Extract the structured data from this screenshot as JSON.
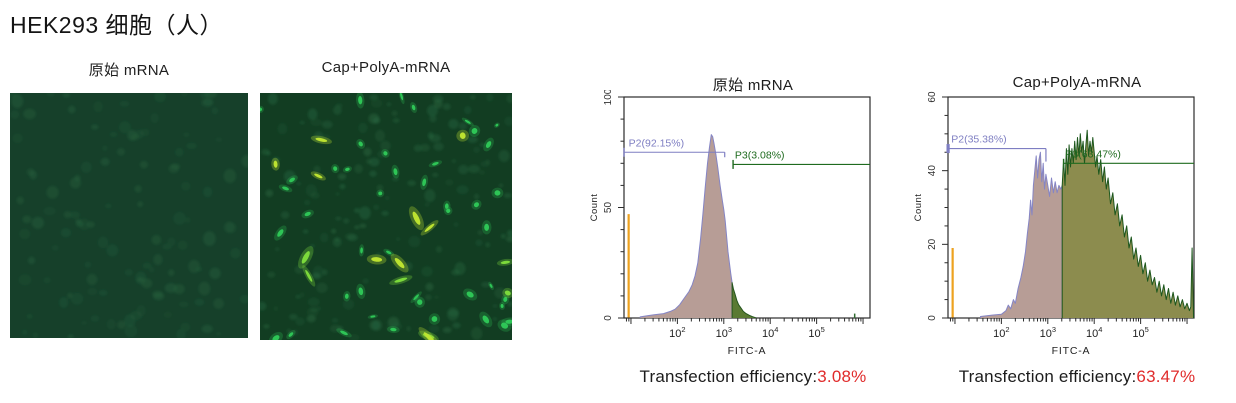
{
  "page": {
    "title": "HEK293 细胞（人）",
    "background": "#ffffff"
  },
  "colors": {
    "negative_outline": "#8585c5",
    "negative_fill": "#b79d96",
    "positive_outline": "#1f5c1f",
    "gate_p2_text": "#7e7ec2",
    "gate_p3_text": "#1f6b1f",
    "marker_orange": "#eda21f",
    "efficiency_value_red": "#e02b2b",
    "axis": "#2b2b2b"
  },
  "microscopy": {
    "panels": [
      {
        "label": "原始 mRNA",
        "background": "#16402a",
        "seed": 7,
        "faint_cells": {
          "count": 120,
          "color": "#2a6b43",
          "min_r": 2.5,
          "max_r": 6.5,
          "opacity": 0.22
        },
        "bright_cells": {
          "count": 0,
          "color": "#2fca58"
        },
        "yellow_cells": {
          "count": 0,
          "color": "#bfe431",
          "color2": "#7ddb3c"
        }
      },
      {
        "label": "Cap+PolyA-mRNA",
        "background": "#123d22",
        "seed": 23,
        "faint_cells": {
          "count": 160,
          "color": "#2a6b43",
          "min_r": 2,
          "max_r": 6,
          "opacity": 0.3
        },
        "bright_cells": {
          "count": 44,
          "color": "#2fca58"
        },
        "yellow_cells": {
          "count": 15,
          "color": "#bfe431",
          "color2": "#7ddb3c"
        }
      }
    ]
  },
  "chart_data": [
    {
      "type": "area",
      "title": "原始 mRNA",
      "xlabel": "FITC-A",
      "ylabel": "Count",
      "x_scale": "log",
      "x_log_range": [
        0.85,
        6.15
      ],
      "x_major_decades": [
        1,
        2,
        3,
        4,
        5,
        6
      ],
      "x_labeled_decades": [
        2,
        3,
        4,
        5
      ],
      "ylim": [
        0,
        100
      ],
      "y_ticks": [
        0,
        50,
        100
      ],
      "y_minor_step": 10,
      "grid": false,
      "legend": "none",
      "marker_line": {
        "x": 0.95,
        "top": 47,
        "color": "#eda21f"
      },
      "series": [
        {
          "name": "P2 negative (untransfected)",
          "stroke": "#8585c5",
          "fill": "#b79d96",
          "points": [
            [
              1.2,
              0.5
            ],
            [
              1.35,
              1
            ],
            [
              1.5,
              1.5
            ],
            [
              1.7,
              2
            ],
            [
              1.85,
              3
            ],
            [
              1.95,
              4
            ],
            [
              2.05,
              6
            ],
            [
              2.15,
              9
            ],
            [
              2.25,
              12
            ],
            [
              2.32,
              15
            ],
            [
              2.38,
              19
            ],
            [
              2.44,
              25
            ],
            [
              2.5,
              36
            ],
            [
              2.55,
              47
            ],
            [
              2.6,
              59
            ],
            [
              2.65,
              70
            ],
            [
              2.69,
              77
            ],
            [
              2.73,
              83
            ],
            [
              2.76,
              82
            ],
            [
              2.79,
              79
            ],
            [
              2.83,
              74
            ],
            [
              2.87,
              68
            ],
            [
              2.92,
              60
            ],
            [
              2.97,
              53
            ],
            [
              3.0,
              49
            ],
            [
              3.03,
              44
            ],
            [
              3.06,
              37
            ],
            [
              3.09,
              30
            ],
            [
              3.12,
              25
            ],
            [
              3.15,
              20
            ],
            [
              3.18,
              16
            ]
          ]
        },
        {
          "name": "P3 positive (GFP+)",
          "stroke": "#26561f",
          "fill": "#5a7a33",
          "points": [
            [
              3.18,
              16
            ],
            [
              3.21,
              13
            ],
            [
              3.24,
              11
            ],
            [
              3.28,
              8
            ],
            [
              3.32,
              6
            ],
            [
              3.37,
              4.5
            ],
            [
              3.42,
              3
            ],
            [
              3.48,
              2
            ],
            [
              3.55,
              1.2
            ],
            [
              3.62,
              0.6
            ],
            [
              3.7,
              0
            ]
          ]
        }
      ],
      "stray_marks": [
        {
          "x": 5.82,
          "height": 2,
          "color": "#2f6b2f"
        }
      ],
      "gates": [
        {
          "name": "P2",
          "label": "P2(92.15%)",
          "color": "#7e7ec2",
          "y": 75,
          "x1": 0.85,
          "x2": 3.02,
          "label_x": 0.95,
          "x1_thick": false,
          "x2_tick": 5
        },
        {
          "name": "P3",
          "label": "P3(3.08%)",
          "color": "#1f6b1f",
          "y": 69.5,
          "x1": 3.2,
          "x2": 6.15,
          "label_x": 3.24,
          "x1_thick": false,
          "x2_tick": 0
        }
      ],
      "efficiency_label": "Transfection efficiency:",
      "efficiency_value": "3.08%"
    },
    {
      "type": "area",
      "title": "Cap+PolyA-mRNA",
      "xlabel": "FITC-A",
      "ylabel": "Count",
      "x_scale": "log",
      "x_log_range": [
        0.85,
        6.15
      ],
      "x_major_decades": [
        1,
        2,
        3,
        4,
        5,
        6
      ],
      "x_labeled_decades": [
        2,
        3,
        4,
        5
      ],
      "ylim": [
        0,
        60
      ],
      "y_ticks": [
        0,
        20,
        40,
        60
      ],
      "y_minor_step": 5,
      "grid": false,
      "legend": "none",
      "marker_line": {
        "x": 0.95,
        "top": 19,
        "color": "#eda21f"
      },
      "series": [
        {
          "name": "P2 negative (untransfected)",
          "stroke": "#8585c5",
          "fill": "#b79d96",
          "points": [
            [
              1.55,
              0.4
            ],
            [
              1.8,
              0.8
            ],
            [
              2.0,
              1
            ],
            [
              2.1,
              2
            ],
            [
              2.15,
              3.5
            ],
            [
              2.2,
              2.5
            ],
            [
              2.26,
              5
            ],
            [
              2.3,
              4
            ],
            [
              2.36,
              8
            ],
            [
              2.42,
              11
            ],
            [
              2.47,
              14
            ],
            [
              2.52,
              18
            ],
            [
              2.56,
              23
            ],
            [
              2.6,
              27
            ],
            [
              2.63,
              32
            ],
            [
              2.66,
              28
            ],
            [
              2.69,
              36
            ],
            [
              2.72,
              40
            ],
            [
              2.75,
              44
            ],
            [
              2.78,
              38
            ],
            [
              2.81,
              43
            ],
            [
              2.84,
              45
            ],
            [
              2.87,
              37
            ],
            [
              2.9,
              42
            ],
            [
              2.93,
              35
            ],
            [
              2.96,
              39
            ],
            [
              3.0,
              36
            ],
            [
              3.04,
              33
            ],
            [
              3.08,
              38
            ],
            [
              3.12,
              34
            ],
            [
              3.16,
              37
            ],
            [
              3.2,
              34
            ],
            [
              3.24,
              36
            ],
            [
              3.28,
              35
            ],
            [
              3.31,
              36
            ]
          ]
        },
        {
          "name": "P3 positive (GFP+)",
          "stroke": "#1d571d",
          "fill": "#8c8c4e",
          "points": [
            [
              3.31,
              36
            ],
            [
              3.34,
              43
            ],
            [
              3.37,
              36
            ],
            [
              3.4,
              46
            ],
            [
              3.43,
              39
            ],
            [
              3.46,
              47
            ],
            [
              3.49,
              41
            ],
            [
              3.52,
              46
            ],
            [
              3.55,
              42
            ],
            [
              3.58,
              48
            ],
            [
              3.61,
              43
            ],
            [
              3.64,
              49
            ],
            [
              3.67,
              44
            ],
            [
              3.7,
              50
            ],
            [
              3.73,
              45
            ],
            [
              3.76,
              48
            ],
            [
              3.79,
              42
            ],
            [
              3.82,
              47
            ],
            [
              3.85,
              51
            ],
            [
              3.88,
              44
            ],
            [
              3.91,
              48
            ],
            [
              3.94,
              45
            ],
            [
              3.97,
              49
            ],
            [
              4.0,
              45
            ],
            [
              4.03,
              41
            ],
            [
              4.06,
              44
            ],
            [
              4.1,
              39
            ],
            [
              4.14,
              43
            ],
            [
              4.18,
              37
            ],
            [
              4.22,
              41
            ],
            [
              4.26,
              35
            ],
            [
              4.3,
              38
            ],
            [
              4.35,
              31
            ],
            [
              4.4,
              34
            ],
            [
              4.45,
              28
            ],
            [
              4.5,
              31
            ],
            [
              4.55,
              25
            ],
            [
              4.6,
              28
            ],
            [
              4.65,
              22
            ],
            [
              4.7,
              25
            ],
            [
              4.75,
              19
            ],
            [
              4.8,
              22
            ],
            [
              4.85,
              16
            ],
            [
              4.9,
              19
            ],
            [
              4.95,
              14
            ],
            [
              5.0,
              17
            ],
            [
              5.05,
              12
            ],
            [
              5.1,
              15
            ],
            [
              5.15,
              10
            ],
            [
              5.2,
              13
            ],
            [
              5.25,
              9
            ],
            [
              5.3,
              11
            ],
            [
              5.35,
              7
            ],
            [
              5.4,
              10
            ],
            [
              5.45,
              6
            ],
            [
              5.5,
              9
            ],
            [
              5.55,
              5
            ],
            [
              5.6,
              8
            ],
            [
              5.65,
              4
            ],
            [
              5.7,
              7
            ],
            [
              5.75,
              3.5
            ],
            [
              5.8,
              6
            ],
            [
              5.85,
              3
            ],
            [
              5.9,
              5
            ],
            [
              5.95,
              2.5
            ],
            [
              6.0,
              4
            ],
            [
              6.05,
              2
            ],
            [
              6.08,
              3
            ],
            [
              6.11,
              19
            ],
            [
              6.14,
              0.5
            ]
          ]
        }
      ],
      "stray_marks": [],
      "gates": [
        {
          "name": "P2",
          "label": "P2(35.38%)",
          "color": "#7e7ec2",
          "y": 46,
          "x1": 0.85,
          "x2": 2.96,
          "label_x": 0.92,
          "x1_thick": true,
          "x2_tick": 13
        },
        {
          "name": "P3",
          "label": "P3(63.47%)",
          "color": "#1f6b1f",
          "y": 42,
          "x1": 3.34,
          "x2": 6.15,
          "label_x": 3.38,
          "x1_thick": false,
          "x2_tick": 0
        }
      ],
      "efficiency_label": "Transfection efficiency:",
      "efficiency_value": "63.47%"
    }
  ]
}
